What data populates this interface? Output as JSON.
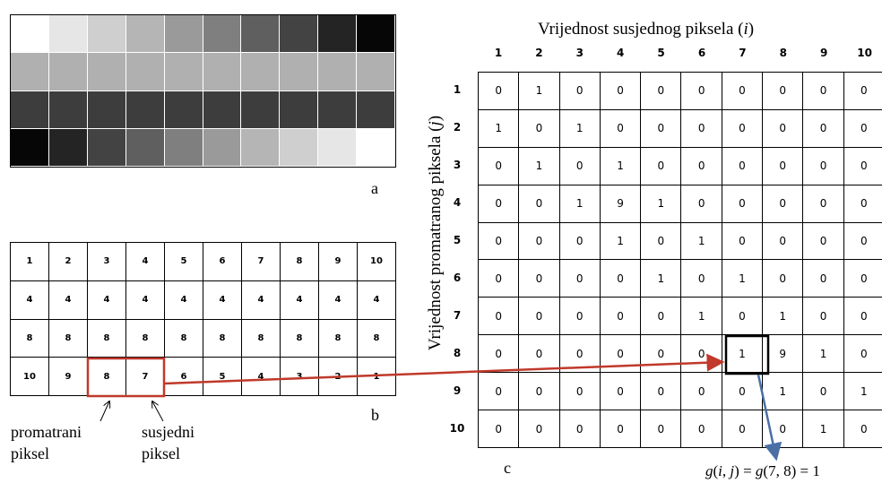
{
  "panel_a": {
    "label": "a",
    "rows": [
      [
        "#ffffff",
        "#e6e6e6",
        "#cfcfcf",
        "#b5b5b5",
        "#9a9a9a",
        "#7f7f7f",
        "#5f5f5f",
        "#434343",
        "#242424",
        "#060606"
      ],
      [
        "#b0b0b0",
        "#b0b0b0",
        "#b0b0b0",
        "#b0b0b0",
        "#b0b0b0",
        "#b0b0b0",
        "#b0b0b0",
        "#b0b0b0",
        "#b0b0b0",
        "#b0b0b0"
      ],
      [
        "#3d3d3d",
        "#3d3d3d",
        "#3d3d3d",
        "#3d3d3d",
        "#3d3d3d",
        "#3d3d3d",
        "#3d3d3d",
        "#3d3d3d",
        "#3d3d3d",
        "#3d3d3d"
      ],
      [
        "#060606",
        "#242424",
        "#434343",
        "#5f5f5f",
        "#7f7f7f",
        "#9a9a9a",
        "#b5b5b5",
        "#cfcfcf",
        "#e6e6e6",
        "#ffffff"
      ]
    ]
  },
  "panel_b": {
    "label": "b",
    "rows": [
      [
        "1",
        "2",
        "3",
        "4",
        "5",
        "6",
        "7",
        "8",
        "9",
        "10"
      ],
      [
        "4",
        "4",
        "4",
        "4",
        "4",
        "4",
        "4",
        "4",
        "4",
        "4"
      ],
      [
        "8",
        "8",
        "8",
        "8",
        "8",
        "8",
        "8",
        "8",
        "8",
        "8"
      ],
      [
        "10",
        "9",
        "8",
        "7",
        "6",
        "5",
        "4",
        "3",
        "2",
        "1"
      ]
    ],
    "observed_label": [
      "promatrani",
      "piksel"
    ],
    "neighbor_label": [
      "susjedni",
      "piksel"
    ]
  },
  "panel_c": {
    "label": "c",
    "x_axis_title": "Vrijednost susjednog piksela (i)",
    "y_axis_title": "Vrijednost promatranog piksela (j)",
    "col_headers": [
      "1",
      "2",
      "3",
      "4",
      "5",
      "6",
      "7",
      "8",
      "9",
      "10"
    ],
    "row_headers": [
      "1",
      "2",
      "3",
      "4",
      "5",
      "6",
      "7",
      "8",
      "9",
      "10"
    ],
    "rows": [
      [
        "0",
        "1",
        "0",
        "0",
        "0",
        "0",
        "0",
        "0",
        "0",
        "0"
      ],
      [
        "1",
        "0",
        "1",
        "0",
        "0",
        "0",
        "0",
        "0",
        "0",
        "0"
      ],
      [
        "0",
        "1",
        "0",
        "1",
        "0",
        "0",
        "0",
        "0",
        "0",
        "0"
      ],
      [
        "0",
        "0",
        "1",
        "9",
        "1",
        "0",
        "0",
        "0",
        "0",
        "0"
      ],
      [
        "0",
        "0",
        "0",
        "1",
        "0",
        "1",
        "0",
        "0",
        "0",
        "0"
      ],
      [
        "0",
        "0",
        "0",
        "0",
        "1",
        "0",
        "1",
        "0",
        "0",
        "0"
      ],
      [
        "0",
        "0",
        "0",
        "0",
        "0",
        "1",
        "0",
        "1",
        "0",
        "0"
      ],
      [
        "0",
        "0",
        "0",
        "0",
        "0",
        "0",
        "1",
        "9",
        "1",
        "0"
      ],
      [
        "0",
        "0",
        "0",
        "0",
        "0",
        "0",
        "0",
        "1",
        "0",
        "1"
      ],
      [
        "0",
        "0",
        "0",
        "0",
        "0",
        "0",
        "0",
        "0",
        "1",
        "0"
      ]
    ],
    "formula": "g(i, j) = g(7, 8) = 1"
  },
  "colors": {
    "highlight_red": "#c0392b",
    "arrow_blue": "#4a6fa5"
  }
}
